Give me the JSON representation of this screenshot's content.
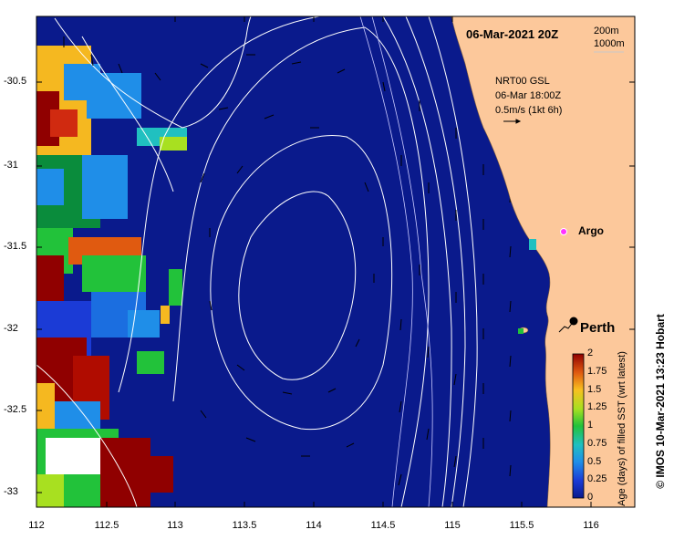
{
  "map": {
    "date_label": "06-Mar-2021 20Z",
    "isobath_legend": [
      "200m",
      "1000m"
    ],
    "current_legend": [
      "NRT00 GSL",
      "06-Mar 18:00Z",
      "0.5m/s (1kt 6h)"
    ],
    "y_ticks": [
      "-30.5",
      "-31",
      "-31.5",
      "-32",
      "-32.5",
      "-33"
    ],
    "x_ticks": [
      "112",
      "112.5",
      "113",
      "113.5",
      "114",
      "114.5",
      "115",
      "115.5",
      "116"
    ],
    "places": [
      "Argo",
      "Perth"
    ],
    "colorbar": {
      "title": "Age (days) of filled SST (wrt latest)",
      "ticks": [
        "0",
        "0.25",
        "0.5",
        "0.75",
        "1",
        "1.25",
        "1.5",
        "1.75",
        "2"
      ]
    },
    "credit": "© IMOS 10-Mar-2021 13:23 Hobart",
    "colors": {
      "ocean": "#0a1a8c",
      "land": "#fcc89b",
      "argo_marker": "#ff33ff"
    }
  }
}
